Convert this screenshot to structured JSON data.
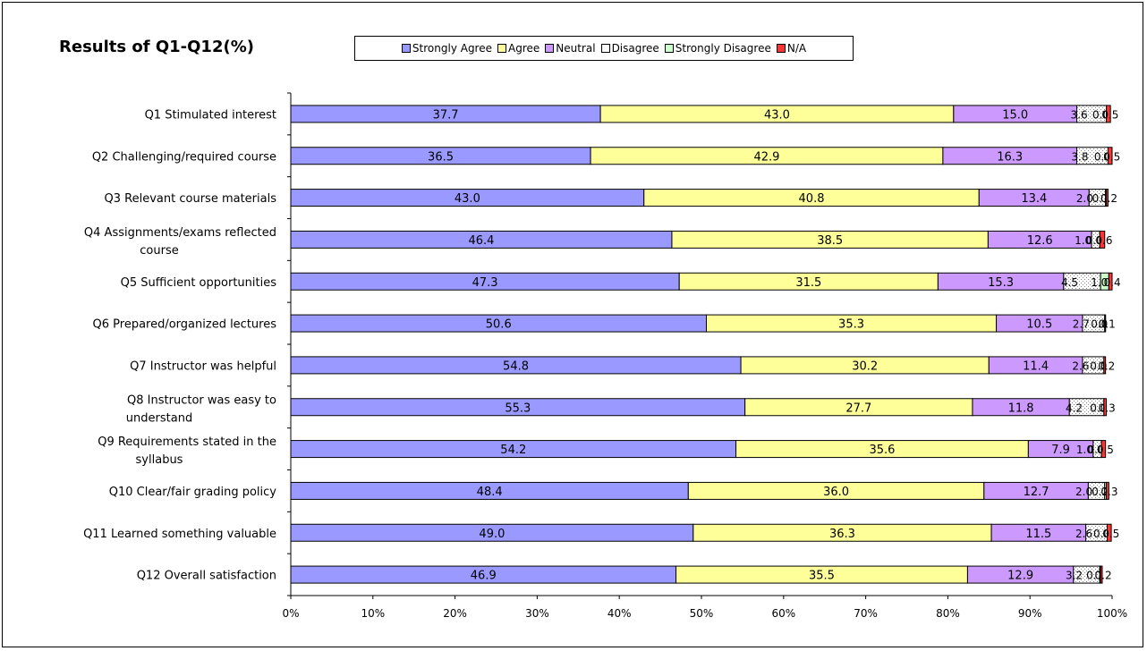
{
  "chart_data": {
    "type": "bar",
    "orientation": "horizontal",
    "stacked": "percent",
    "title": "Results of Q1-Q12(%)",
    "categories": [
      "Q1 Stimulated interest",
      "Q2 Challenging/required course",
      "Q3 Relevant course materials",
      "Q4 Assignments/exams reflected course",
      "Q5 Sufficient opportunities",
      "Q6 Prepared/organized lectures",
      "Q7 Instructor was helpful",
      "Q8 Instructor was easy to understand",
      "Q9 Requirements stated in the syllabus",
      "Q10 Clear/fair grading policy",
      "Q11 Learned something valuable",
      "Q12 Overall satisfaction"
    ],
    "series": [
      {
        "name": "Strongly Agree",
        "color": "#9999ff",
        "values": [
          37.7,
          36.5,
          43.0,
          46.4,
          47.3,
          50.6,
          54.8,
          55.3,
          54.2,
          48.4,
          49.0,
          46.9
        ]
      },
      {
        "name": "Agree",
        "color": "#ffff99",
        "values": [
          43.0,
          42.9,
          40.8,
          38.5,
          31.5,
          35.3,
          30.2,
          27.7,
          35.6,
          36.0,
          36.3,
          35.5
        ]
      },
      {
        "name": "Neutral",
        "color": "#cc99ff",
        "values": [
          15.0,
          16.3,
          13.4,
          12.6,
          15.3,
          10.5,
          11.4,
          11.8,
          7.9,
          12.7,
          11.5,
          12.9
        ]
      },
      {
        "name": "Disagree",
        "color": "#ffffff",
        "values": [
          3.6,
          3.8,
          2.0,
          1.0,
          4.5,
          2.7,
          2.6,
          4.2,
          1.0,
          2.0,
          2.6,
          3.2
        ]
      },
      {
        "name": "Strongly Disagree",
        "color": "#ccffcc",
        "values": [
          0.0,
          0.0,
          0.1,
          0.0,
          1.0,
          0.0,
          0.0,
          0.0,
          0.0,
          0.2,
          0.0,
          0.1
        ]
      },
      {
        "name": "N/A",
        "color": "#ff3333",
        "values": [
          0.5,
          0.5,
          0.2,
          0.6,
          0.4,
          0.1,
          0.2,
          0.3,
          0.5,
          0.3,
          0.5,
          0.2
        ]
      }
    ],
    "bar_labels": [
      [
        "37.7",
        "43.0",
        "15.0",
        "3.6",
        "0.0",
        "0.5"
      ],
      [
        "36.5",
        "42.9",
        "16.3",
        "3.8",
        "0.0",
        "0.5"
      ],
      [
        "43.0",
        "40.8",
        "13.4",
        "2.0",
        "0.1",
        "0.2"
      ],
      [
        "46.4",
        "38.5",
        "12.6",
        "1.0",
        "0.0",
        "0.6"
      ],
      [
        "47.3",
        "31.5",
        "15.3",
        "4.5",
        "1.0",
        "0.4"
      ],
      [
        "50.6",
        "35.3",
        "10.5",
        "2.7",
        "0.0",
        "0.1"
      ],
      [
        "54.8",
        "30.2",
        "11.4",
        "2.6",
        "0.0",
        "0.2"
      ],
      [
        "55.3",
        "27.7",
        "11.8",
        "4.2",
        "0.0",
        "0.3"
      ],
      [
        "54.2",
        "35.6",
        "7.9",
        "1.0",
        "0.0",
        "0.5"
      ],
      [
        "48.4",
        "36.0",
        "12.7",
        "2.0",
        "0.2",
        "0.3"
      ],
      [
        "49.0",
        "36.3",
        "11.5",
        "2.6",
        "0.0",
        "0.5"
      ],
      [
        "46.9",
        "35.5",
        "12.9",
        "3.2",
        "0.1",
        "0.2"
      ]
    ],
    "xlim": [
      0,
      100
    ],
    "xticks": [
      "0%",
      "10%",
      "20%",
      "30%",
      "40%",
      "50%",
      "60%",
      "70%",
      "80%",
      "90%",
      "100%"
    ],
    "legend_position": "top",
    "grid": false
  }
}
